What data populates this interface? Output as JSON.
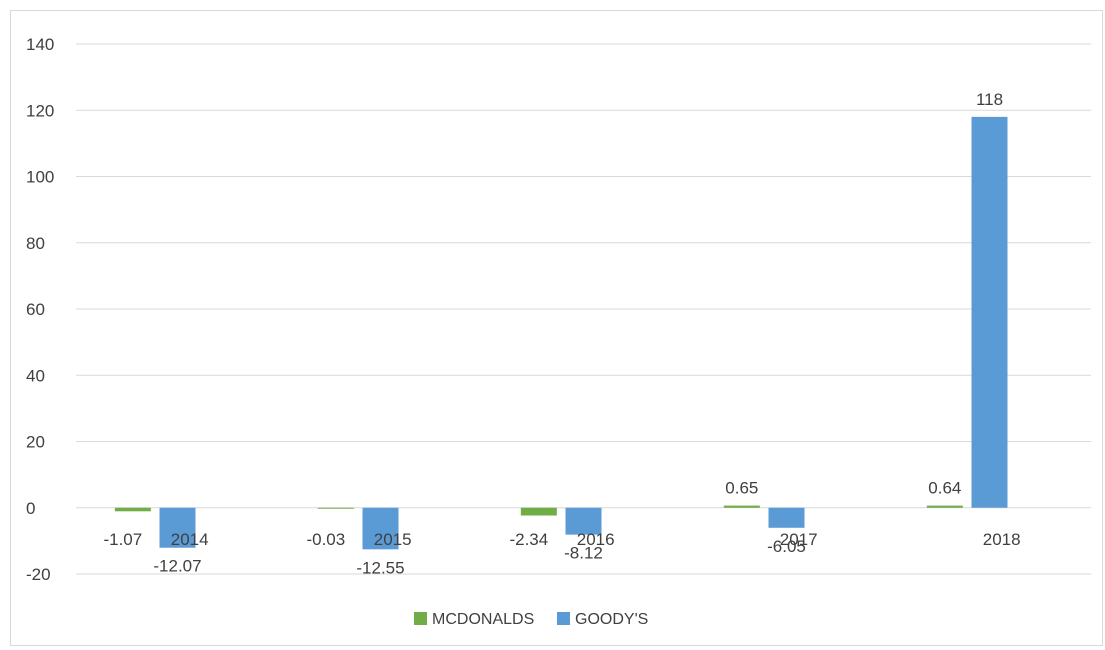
{
  "chart_data": {
    "type": "bar",
    "categories": [
      "2014",
      "2015",
      "2016",
      "2017",
      "2018"
    ],
    "series": [
      {
        "name": "MCDONALDS",
        "values": [
          -1.07,
          -0.03,
          -2.34,
          0.65,
          0.64
        ],
        "color": "#70ad47"
      },
      {
        "name": "GOODY'S",
        "values": [
          -12.07,
          -12.55,
          -8.12,
          -6.05,
          118
        ],
        "color": "#5b9bd5"
      }
    ],
    "data_labels": [
      [
        "-1.07",
        "-0.03",
        "-2.34",
        "0.65",
        "0.64"
      ],
      [
        "-12.07",
        "-12.55",
        "-8.12",
        "-6.05",
        "118"
      ]
    ],
    "ylim": [
      -20,
      140
    ],
    "yticks": [
      -20,
      0,
      20,
      40,
      60,
      80,
      100,
      120,
      140
    ],
    "title": "",
    "xlabel": "",
    "ylabel": "",
    "grid": true,
    "legend_position": "bottom",
    "gridline_color": "#d9d9d9"
  }
}
